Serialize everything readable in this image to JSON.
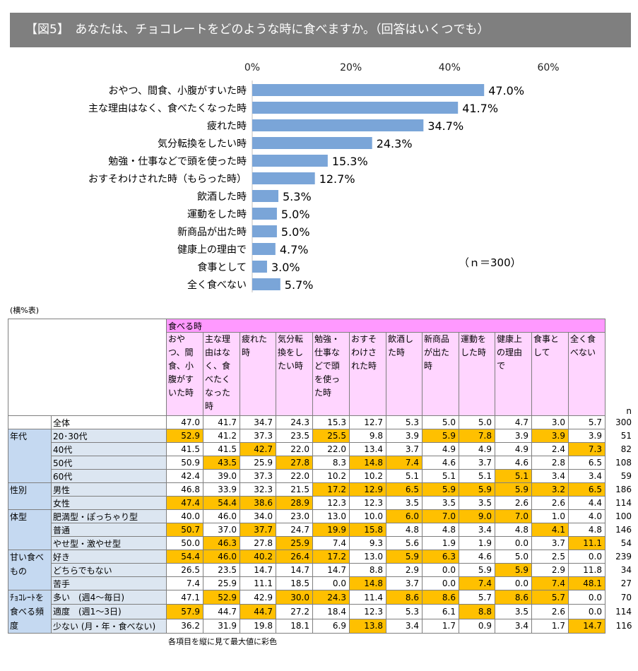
{
  "title": "【図5】　あなたは、チョコレートをどのような時に食べますか。（回答はいくつでも）",
  "chart_data": {
    "type": "bar",
    "orientation": "horizontal",
    "categories": [
      "おやつ、間食、小腹がすいた時",
      "主な理由はなく、食べたくなった時",
      "疲れた時",
      "気分転換をしたい時",
      "勉強・仕事などで頭を使った時",
      "おすそわけされた時（もらった時）",
      "飲酒した時",
      "運動をした時",
      "新商品が出た時",
      "健康上の理由で",
      "食事として",
      "全く食べない"
    ],
    "values": [
      47.0,
      41.7,
      34.7,
      24.3,
      15.3,
      12.7,
      5.3,
      5.0,
      5.0,
      4.7,
      3.0,
      5.7
    ],
    "value_labels": [
      "47.0%",
      "41.7%",
      "34.7%",
      "24.3%",
      "15.3%",
      "12.7%",
      "5.3%",
      "5.0%",
      "5.0%",
      "4.7%",
      "3.0%",
      "5.7%"
    ],
    "xlim": [
      0,
      60
    ],
    "x_ticks": [
      "0%",
      "20%",
      "40%",
      "60%"
    ],
    "bar_color": "#7aa5d8",
    "annotation": "（ｎ＝300）"
  },
  "table": {
    "sub_label": "(横%表)",
    "group_header": "食べる時",
    "n_header": "n",
    "columns": [
      "おやつ、間食、小腹がすいた時",
      "主な理由はなく、食べたくなった時",
      "疲れた時",
      "気分転換をしたい時",
      "勉強・仕事などで頭を使った時",
      "おすそわけされた時",
      "飲酒した時",
      "新商品が出た時",
      "運動をした時",
      "健康上の理由で",
      "食事として",
      "全く食べない"
    ],
    "total": {
      "label": "全体",
      "values": [
        "47.0",
        "41.7",
        "34.7",
        "24.3",
        "15.3",
        "12.7",
        "5.3",
        "5.0",
        "5.0",
        "4.7",
        "3.0",
        "5.7"
      ],
      "n": "300",
      "hl": []
    },
    "groups": [
      {
        "label": "年代",
        "rows": [
          {
            "label": "20･30代",
            "values": [
              "52.9",
              "41.2",
              "37.3",
              "23.5",
              "25.5",
              "9.8",
              "3.9",
              "5.9",
              "7.8",
              "3.9",
              "3.9",
              "3.9"
            ],
            "n": "51",
            "hl": [
              0,
              4,
              7,
              8,
              10
            ]
          },
          {
            "label": "40代",
            "values": [
              "41.5",
              "41.5",
              "42.7",
              "22.0",
              "22.0",
              "13.4",
              "3.7",
              "4.9",
              "4.9",
              "4.9",
              "2.4",
              "7.3"
            ],
            "n": "82",
            "hl": [
              2,
              11
            ]
          },
          {
            "label": "50代",
            "values": [
              "50.9",
              "43.5",
              "25.9",
              "27.8",
              "8.3",
              "14.8",
              "7.4",
              "4.6",
              "3.7",
              "4.6",
              "2.8",
              "6.5"
            ],
            "n": "108",
            "hl": [
              1,
              3,
              5,
              6
            ]
          },
          {
            "label": "60代",
            "values": [
              "42.4",
              "39.0",
              "37.3",
              "22.0",
              "10.2",
              "10.2",
              "5.1",
              "5.1",
              "5.1",
              "5.1",
              "3.4",
              "3.4"
            ],
            "n": "59",
            "hl": [
              9
            ]
          }
        ]
      },
      {
        "label": "性別",
        "rows": [
          {
            "label": "男性",
            "values": [
              "46.8",
              "33.9",
              "32.3",
              "21.5",
              "17.2",
              "12.9",
              "6.5",
              "5.9",
              "5.9",
              "5.9",
              "3.2",
              "6.5"
            ],
            "n": "186",
            "hl": [
              4,
              5,
              6,
              7,
              8,
              9,
              10,
              11
            ]
          },
          {
            "label": "女性",
            "values": [
              "47.4",
              "54.4",
              "38.6",
              "28.9",
              "12.3",
              "12.3",
              "3.5",
              "3.5",
              "3.5",
              "2.6",
              "2.6",
              "4.4"
            ],
            "n": "114",
            "hl": [
              0,
              1,
              2,
              3
            ]
          }
        ]
      },
      {
        "label": "体型",
        "rows": [
          {
            "label": "肥満型・ぽっちゃり型",
            "values": [
              "40.0",
              "46.0",
              "34.0",
              "23.0",
              "13.0",
              "10.0",
              "6.0",
              "7.0",
              "9.0",
              "7.0",
              "1.0",
              "4.0"
            ],
            "n": "100",
            "hl": [
              6,
              7,
              8,
              9
            ]
          },
          {
            "label": "普通",
            "values": [
              "50.7",
              "37.0",
              "37.7",
              "24.7",
              "19.9",
              "15.8",
              "4.8",
              "4.8",
              "3.4",
              "4.8",
              "4.1",
              "4.8"
            ],
            "n": "146",
            "hl": [
              0,
              2,
              4,
              5,
              10
            ]
          },
          {
            "label": "やせ型・激やせ型",
            "values": [
              "50.0",
              "46.3",
              "27.8",
              "25.9",
              "7.4",
              "9.3",
              "5.6",
              "1.9",
              "1.9",
              "0.0",
              "3.7",
              "11.1"
            ],
            "n": "54",
            "hl": [
              1,
              3,
              11
            ]
          }
        ]
      },
      {
        "label": "甘い食べもの",
        "rows": [
          {
            "label": "好き",
            "values": [
              "54.4",
              "46.0",
              "40.2",
              "26.4",
              "17.2",
              "13.0",
              "5.9",
              "6.3",
              "4.6",
              "5.0",
              "2.5",
              "0.0"
            ],
            "n": "239",
            "hl": [
              0,
              1,
              2,
              3,
              4,
              6,
              7
            ]
          },
          {
            "label": "どちらでもない",
            "values": [
              "26.5",
              "23.5",
              "14.7",
              "14.7",
              "14.7",
              "8.8",
              "2.9",
              "0.0",
              "5.9",
              "5.9",
              "2.9",
              "11.8"
            ],
            "n": "34",
            "hl": [
              9
            ]
          },
          {
            "label": "苦手",
            "values": [
              "7.4",
              "25.9",
              "11.1",
              "18.5",
              "0.0",
              "14.8",
              "3.7",
              "0.0",
              "7.4",
              "0.0",
              "7.4",
              "48.1"
            ],
            "n": "27",
            "hl": [
              5,
              8,
              10,
              11
            ]
          }
        ]
      },
      {
        "label": "ﾁｮｺﾚｰﾄを食べる頻度",
        "rows": [
          {
            "label": "多い　(週4～毎日)",
            "values": [
              "47.1",
              "52.9",
              "42.9",
              "30.0",
              "24.3",
              "11.4",
              "8.6",
              "8.6",
              "5.7",
              "8.6",
              "5.7",
              "0.0"
            ],
            "n": "70",
            "hl": [
              1,
              3,
              4,
              6,
              7,
              9,
              10
            ]
          },
          {
            "label": "適度　(週1～3日)",
            "values": [
              "57.9",
              "44.7",
              "44.7",
              "27.2",
              "18.4",
              "12.3",
              "5.3",
              "6.1",
              "8.8",
              "3.5",
              "2.6",
              "0.0"
            ],
            "n": "114",
            "hl": [
              0,
              2,
              8
            ]
          },
          {
            "label": "少ない (月・年・食べない)",
            "values": [
              "36.2",
              "31.9",
              "19.8",
              "18.1",
              "6.9",
              "13.8",
              "3.4",
              "1.7",
              "0.9",
              "3.4",
              "1.7",
              "14.7"
            ],
            "n": "116",
            "hl": [
              5,
              11
            ]
          }
        ]
      }
    ],
    "footnote": "各項目を縦に見て最大値に彩色"
  }
}
